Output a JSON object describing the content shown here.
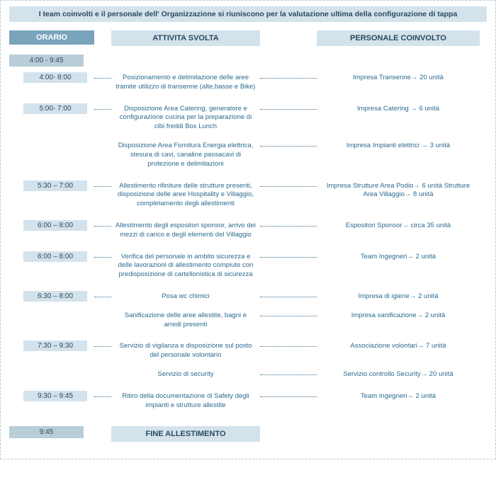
{
  "header": "I team coinvolti e il personale dell' Organizzazione si riuniscono per la valutazione ultima della configurazione di tappa",
  "orario_label": "ORARIO",
  "col_activity": "ATTIVITA SVOLTA",
  "col_personnel": "PERSONALE COINVOLTO",
  "time_main_start": "4:00 - 9:45",
  "time_main_end": "9:45",
  "footer": "FINE ALLESTIMENTO",
  "rows": [
    {
      "time": "4:00- 8:00",
      "activities": [
        "Posizionamento e delimitazione delle aree tramite utilizzo di transenne (alte,basse e Bike)"
      ],
      "personnel": [
        "Impresa  Transenne→ 20 unità"
      ]
    },
    {
      "time": "5:00- 7:00",
      "activities": [
        "Disposizione Area Catering, generatore e configurazione cucina per la preparazione di cibi freddi  Box Lunch",
        "Disposizione Area Fornitura Energia elettrica, stesura di cavi, canaline passacavi di protezione e delimitazioni"
      ],
      "personnel": [
        "Impresa Catering → 6 unità",
        "Impresa Impianti elettrici → 3 unità"
      ]
    },
    {
      "time": "5:30 – 7:00",
      "activities": [
        "Allestimento rifiniture delle strutture presenti, disposizione delle aree Hospitality e Villaggio, completamento degli allestimenti"
      ],
      "personnel": [
        "Impresa Strutture Area Podio→ 6 unità Strutture Area Villaggio→ 8 unità"
      ]
    },
    {
      "time": "6:00 – 8:00",
      "activities": [
        "Allestimento degli espositori sponsor, arrivo dei mezzi di carico e degli elementi del Villaggio"
      ],
      "personnel": [
        "Espositori Sponsor→ circa 35 unità"
      ]
    },
    {
      "time": "6:00 – 8:00",
      "activities": [
        "Verifica del personale in ambito sicurezza e delle lavorazioni di allestimento compiute con predisposizione di cartellonistica di sicurezza"
      ],
      "personnel": [
        "Team Ingegneri→ 2 unità"
      ]
    },
    {
      "time": "6:30 – 8:00",
      "activities": [
        "Posa wc chimici",
        "Sanificazione delle aree allestite, bagni e arredi presenti"
      ],
      "personnel": [
        "Impresa di igiene→ 2 unità",
        "Impresa sanificazione→ 2 unità"
      ]
    },
    {
      "time": "7:30 – 9:30",
      "activities": [
        "Servizio di vigilanza e disposizione sul posto del personale volontario",
        "Servizio di security"
      ],
      "personnel": [
        "Associazione volontari→ 7 unità",
        "Servizio controllo Security→ 20 unità"
      ]
    },
    {
      "time": "9:30 – 9:45",
      "activities": [
        "Ritiro della documentazione di Safety degli impianti e strutture allestite"
      ],
      "personnel": [
        "Team Ingegneri→ 2 unità"
      ]
    }
  ],
  "colors": {
    "banner_bg": "#d4e2ec",
    "banner_text": "#2a4a5f",
    "orario_bg": "#7aa3bc",
    "time_main_bg": "#b9cdd9",
    "time_sub_bg": "#d4e2ec",
    "body_text": "#2a6a8f",
    "dots": "#3a6a8a"
  }
}
